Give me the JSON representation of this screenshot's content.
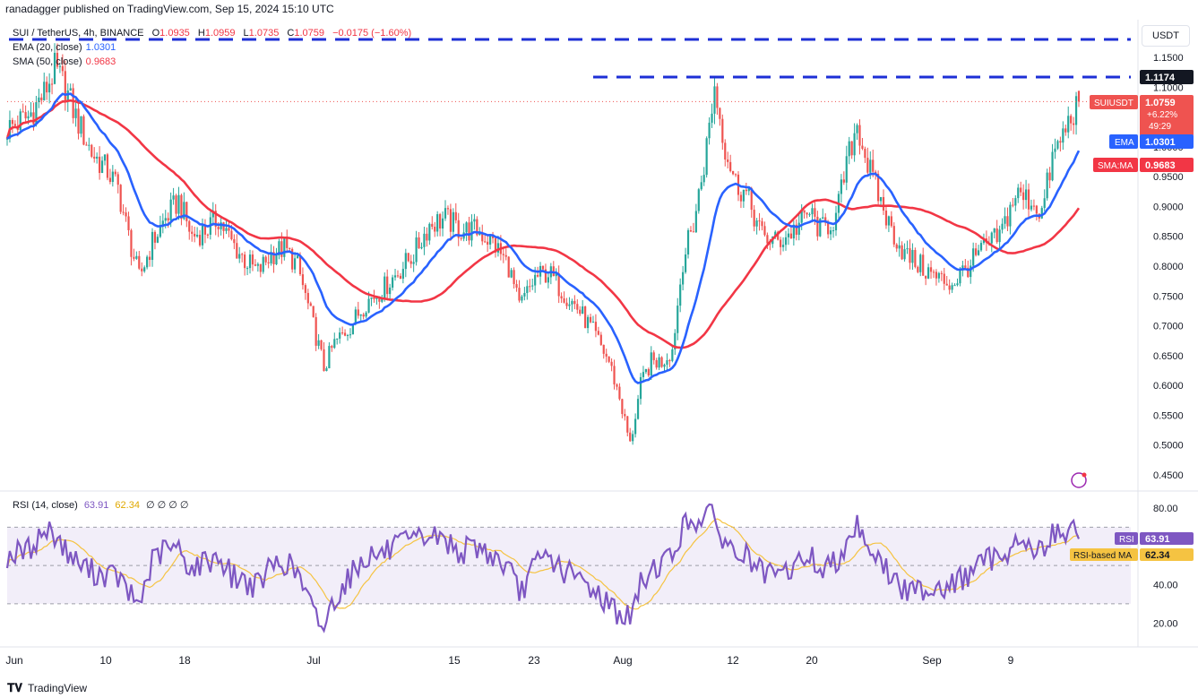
{
  "header": {
    "publisher": "ranadagger published on TradingView.com, Sep 15, 2024 15:10 UTC"
  },
  "legend": {
    "symbol": "SUI / TetherUS, 4h, BINANCE",
    "ohlc": {
      "o_label": "O",
      "o": "1.0935",
      "h_label": "H",
      "h": "1.0959",
      "l_label": "L",
      "l": "1.0735",
      "c_label": "C",
      "c": "1.0759",
      "change": "−0.0175 (−1.60%)"
    },
    "ema_label": "EMA (20, close)",
    "ema_value": "1.0301",
    "sma_label": "SMA (50, close)",
    "sma_value": "0.9683",
    "rsi_label": "RSI (14, close)",
    "rsi_value": "63.91",
    "rsi_ma_value": "62.34",
    "rsi_extra": "∅ ∅ ∅ ∅"
  },
  "currency_button": "USDT",
  "footer": {
    "brand": "TradingView"
  },
  "colors": {
    "up": "#26A69A",
    "down": "#EF5350",
    "ema": "#2962FF",
    "sma": "#F23645",
    "rsi": "#7E57C2",
    "rsi_ma": "#F5C342",
    "level": "#1d2fd6"
  },
  "chart_data": {
    "type": "candlestick",
    "price_axis": {
      "ticks": [
        "1.1500",
        "1.1000",
        "1.0500",
        "1.0000",
        "0.9500",
        "0.9000",
        "0.8500",
        "0.8000",
        "0.7500",
        "0.7000",
        "0.6500",
        "0.6000",
        "0.5500",
        "0.5000",
        "0.4500"
      ],
      "ylim": [
        0.42,
        1.19
      ]
    },
    "x_ticks": [
      "Jun",
      "10",
      "18",
      "Jul",
      "15",
      "23",
      "Aug",
      "12",
      "20",
      "Sep",
      "9"
    ],
    "horizontal_levels": [
      {
        "value": 1.18,
        "style": "dashed"
      },
      {
        "value": 1.1174,
        "style": "dashed",
        "label": "1.1174"
      }
    ],
    "price_labels": [
      {
        "name": "SUIUSDT",
        "value": "1.0759",
        "extra": [
          "+6.22%",
          "49:29"
        ],
        "color": "#EF5350"
      },
      {
        "name": "EMA",
        "value": "1.0301",
        "color": "#2962FF"
      },
      {
        "name": "SMA:MA",
        "value": "0.9683",
        "color": "#F23645"
      }
    ],
    "close_anchors": [
      [
        0,
        1.03
      ],
      [
        8,
        1.05
      ],
      [
        14,
        1.09
      ],
      [
        18,
        1.13
      ],
      [
        22,
        1.1
      ],
      [
        26,
        1.05
      ],
      [
        32,
        0.99
      ],
      [
        38,
        0.96
      ],
      [
        42,
        0.93
      ],
      [
        46,
        0.85
      ],
      [
        50,
        0.78
      ],
      [
        55,
        0.84
      ],
      [
        60,
        0.88
      ],
      [
        65,
        0.91
      ],
      [
        70,
        0.85
      ],
      [
        75,
        0.86
      ],
      [
        80,
        0.88
      ],
      [
        85,
        0.84
      ],
      [
        90,
        0.81
      ],
      [
        95,
        0.79
      ],
      [
        100,
        0.82
      ],
      [
        105,
        0.83
      ],
      [
        110,
        0.8
      ],
      [
        116,
        0.7
      ],
      [
        120,
        0.63
      ],
      [
        124,
        0.67
      ],
      [
        130,
        0.7
      ],
      [
        136,
        0.74
      ],
      [
        142,
        0.76
      ],
      [
        148,
        0.79
      ],
      [
        154,
        0.82
      ],
      [
        160,
        0.87
      ],
      [
        166,
        0.88
      ],
      [
        172,
        0.86
      ],
      [
        178,
        0.86
      ],
      [
        184,
        0.84
      ],
      [
        190,
        0.8
      ],
      [
        194,
        0.73
      ],
      [
        200,
        0.78
      ],
      [
        205,
        0.79
      ],
      [
        210,
        0.76
      ],
      [
        216,
        0.73
      ],
      [
        222,
        0.69
      ],
      [
        228,
        0.64
      ],
      [
        232,
        0.58
      ],
      [
        236,
        0.5
      ],
      [
        240,
        0.6
      ],
      [
        244,
        0.64
      ],
      [
        248,
        0.64
      ],
      [
        252,
        0.66
      ],
      [
        256,
        0.81
      ],
      [
        260,
        0.87
      ],
      [
        264,
        0.97
      ],
      [
        268,
        1.1
      ],
      [
        272,
        1.0
      ],
      [
        276,
        0.94
      ],
      [
        280,
        0.92
      ],
      [
        286,
        0.85
      ],
      [
        292,
        0.84
      ],
      [
        298,
        0.86
      ],
      [
        304,
        0.89
      ],
      [
        308,
        0.86
      ],
      [
        314,
        0.88
      ],
      [
        318,
        0.97
      ],
      [
        322,
        1.04
      ],
      [
        326,
        0.97
      ],
      [
        330,
        0.92
      ],
      [
        334,
        0.87
      ],
      [
        340,
        0.82
      ],
      [
        346,
        0.8
      ],
      [
        352,
        0.78
      ],
      [
        358,
        0.77
      ],
      [
        364,
        0.8
      ],
      [
        370,
        0.83
      ],
      [
        376,
        0.85
      ],
      [
        382,
        0.92
      ],
      [
        388,
        0.91
      ],
      [
        392,
        0.89
      ],
      [
        396,
        0.98
      ],
      [
        400,
        1.02
      ],
      [
        404,
        1.06
      ],
      [
        406,
        1.0759
      ]
    ],
    "rsi_axis": {
      "ticks": [
        "80.00",
        "40.00",
        "20.00"
      ],
      "ylim": [
        10,
        85
      ],
      "bands": [
        30,
        70
      ]
    },
    "rsi_anchors": [
      [
        0,
        55
      ],
      [
        8,
        58
      ],
      [
        14,
        68
      ],
      [
        18,
        67
      ],
      [
        22,
        58
      ],
      [
        26,
        52
      ],
      [
        32,
        47
      ],
      [
        38,
        45
      ],
      [
        42,
        44
      ],
      [
        46,
        35
      ],
      [
        50,
        30
      ],
      [
        55,
        52
      ],
      [
        60,
        59
      ],
      [
        65,
        58
      ],
      [
        70,
        48
      ],
      [
        75,
        52
      ],
      [
        80,
        55
      ],
      [
        85,
        45
      ],
      [
        90,
        42
      ],
      [
        95,
        39
      ],
      [
        100,
        50
      ],
      [
        105,
        52
      ],
      [
        110,
        46
      ],
      [
        116,
        25
      ],
      [
        120,
        18
      ],
      [
        124,
        33
      ],
      [
        130,
        45
      ],
      [
        136,
        55
      ],
      [
        142,
        56
      ],
      [
        148,
        60
      ],
      [
        154,
        62
      ],
      [
        160,
        66
      ],
      [
        166,
        63
      ],
      [
        172,
        57
      ],
      [
        178,
        60
      ],
      [
        184,
        55
      ],
      [
        190,
        48
      ],
      [
        194,
        35
      ],
      [
        200,
        50
      ],
      [
        205,
        55
      ],
      [
        210,
        48
      ],
      [
        216,
        43
      ],
      [
        222,
        38
      ],
      [
        228,
        30
      ],
      [
        232,
        25
      ],
      [
        236,
        22
      ],
      [
        240,
        40
      ],
      [
        244,
        48
      ],
      [
        248,
        52
      ],
      [
        252,
        55
      ],
      [
        256,
        70
      ],
      [
        260,
        73
      ],
      [
        264,
        77
      ],
      [
        268,
        74
      ],
      [
        272,
        62
      ],
      [
        276,
        56
      ],
      [
        280,
        55
      ],
      [
        286,
        45
      ],
      [
        292,
        44
      ],
      [
        298,
        49
      ],
      [
        304,
        56
      ],
      [
        308,
        47
      ],
      [
        314,
        52
      ],
      [
        318,
        63
      ],
      [
        322,
        72
      ],
      [
        326,
        62
      ],
      [
        330,
        53
      ],
      [
        334,
        46
      ],
      [
        340,
        36
      ],
      [
        346,
        38
      ],
      [
        352,
        39
      ],
      [
        358,
        40
      ],
      [
        364,
        45
      ],
      [
        370,
        52
      ],
      [
        376,
        55
      ],
      [
        382,
        62
      ],
      [
        388,
        60
      ],
      [
        392,
        57
      ],
      [
        396,
        66
      ],
      [
        400,
        68
      ],
      [
        404,
        67
      ],
      [
        406,
        63.91
      ]
    ],
    "rsi_labels": [
      {
        "name": "RSI",
        "value": "63.91",
        "color": "#7E57C2"
      },
      {
        "name": "RSI-based MA",
        "value": "62.34",
        "color": "#F5C342"
      }
    ]
  }
}
